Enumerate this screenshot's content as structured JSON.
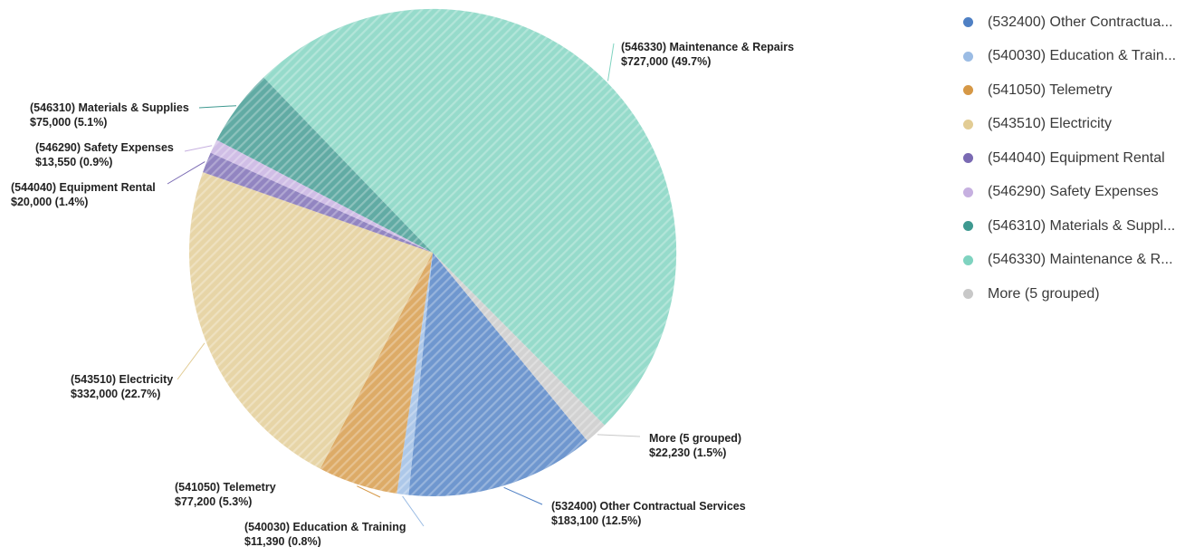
{
  "chart_data": {
    "type": "pie",
    "slices": [
      {
        "code": "532400",
        "label": "(532400) Other Contractual Services",
        "legend": "(532400) Other Contractua...",
        "value_text": "$183,100 (12.5%)",
        "value": 183100,
        "percent": 12.5,
        "color": "#4f80c4"
      },
      {
        "code": "540030",
        "label": "(540030) Education & Training",
        "legend": "(540030) Education & Train...",
        "value_text": "$11,390 (0.8%)",
        "value": 11390,
        "percent": 0.8,
        "color": "#9bbce4"
      },
      {
        "code": "541050",
        "label": "(541050) Telemetry",
        "legend": "(541050) Telemetry",
        "value_text": "$77,200 (5.3%)",
        "value": 77200,
        "percent": 5.3,
        "color": "#d69846"
      },
      {
        "code": "543510",
        "label": "(543510) Electricity",
        "legend": "(543510) Electricity",
        "value_text": "$332,000 (22.7%)",
        "value": 332000,
        "percent": 22.7,
        "color": "#e2cc94"
      },
      {
        "code": "544040",
        "label": "(544040) Equipment Rental",
        "legend": "(544040) Equipment Rental",
        "value_text": "$20,000 (1.4%)",
        "value": 20000,
        "percent": 1.4,
        "color": "#7a6ab3"
      },
      {
        "code": "546290",
        "label": "(546290) Safety Expenses",
        "legend": "(546290) Safety Expenses",
        "value_text": "$13,550 (0.9%)",
        "value": 13550,
        "percent": 0.9,
        "color": "#c6b0e0"
      },
      {
        "code": "546310",
        "label": "(546310) Materials & Supplies",
        "legend": "(546310) Materials & Suppl...",
        "value_text": "$75,000 (5.1%)",
        "value": 75000,
        "percent": 5.1,
        "color": "#3e9990"
      },
      {
        "code": "546330",
        "label": "(546330) Maintenance & Repairs",
        "legend": "(546330) Maintenance & R...",
        "value_text": "$727,000 (49.7%)",
        "value": 727000,
        "percent": 49.7,
        "color": "#7fd3c0"
      },
      {
        "code": "more",
        "label": "More (5 grouped)",
        "legend": "More (5 grouped)",
        "value_text": "$22,230 (1.5%)",
        "value": 22230,
        "percent": 1.5,
        "color": "#c8c8c8"
      }
    ],
    "legend_position": "right"
  }
}
